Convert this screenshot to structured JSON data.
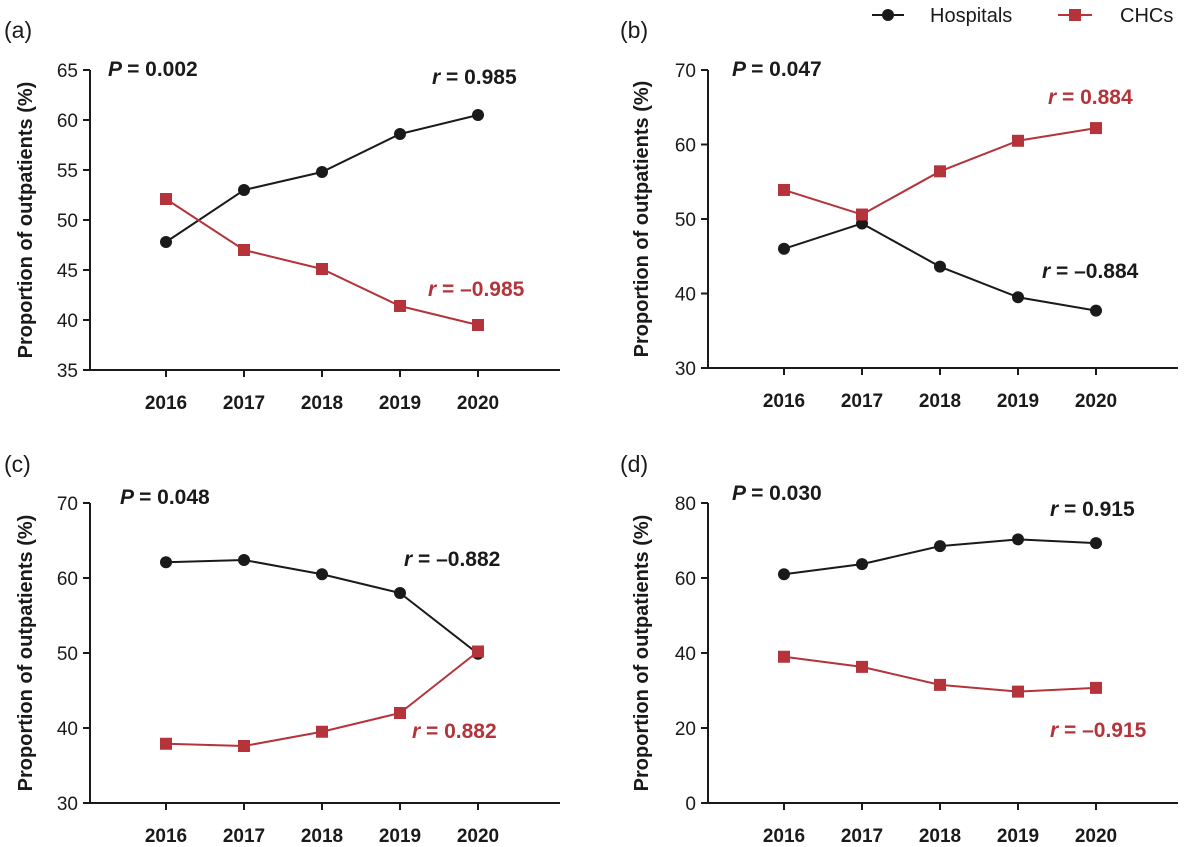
{
  "legend": {
    "items": [
      {
        "label": "Hospitals",
        "color": "#1a1a1a",
        "marker": "circle"
      },
      {
        "label": "CHCs",
        "color": "#b5333a",
        "marker": "square"
      }
    ]
  },
  "chart_data": [
    {
      "type": "line",
      "panel": "(a)",
      "ylabel": "Proportion of outpatients (%)",
      "ylim": [
        35,
        65
      ],
      "yticks": [
        35,
        40,
        45,
        50,
        55,
        60,
        65
      ],
      "categories": [
        "2016",
        "2017",
        "2018",
        "2019",
        "2020"
      ],
      "p_label": "P",
      "p_value": "= 0.002",
      "series": [
        {
          "name": "Hospitals",
          "values": [
            47.8,
            53.0,
            54.8,
            58.6,
            60.5
          ],
          "r_label": "r",
          "r_value": "= 0.985"
        },
        {
          "name": "CHCs",
          "values": [
            52.1,
            47.0,
            45.1,
            41.4,
            39.5
          ],
          "r_label": "r",
          "r_value": "= –0.985"
        }
      ]
    },
    {
      "type": "line",
      "panel": "(b)",
      "ylabel": "Proportion of outpatients (%)",
      "ylim": [
        30,
        70
      ],
      "yticks": [
        30,
        40,
        50,
        60,
        70
      ],
      "categories": [
        "2016",
        "2017",
        "2018",
        "2019",
        "2020"
      ],
      "p_label": "P",
      "p_value": "= 0.047",
      "series": [
        {
          "name": "Hospitals",
          "values": [
            46.0,
            49.4,
            43.6,
            39.5,
            37.7
          ],
          "r_label": "r",
          "r_value": "= –0.884"
        },
        {
          "name": "CHCs",
          "values": [
            53.9,
            50.6,
            56.4,
            60.5,
            62.2
          ],
          "r_label": "r",
          "r_value": "= 0.884"
        }
      ]
    },
    {
      "type": "line",
      "panel": "(c)",
      "ylabel": "Proportion of outpatients (%)",
      "ylim": [
        30,
        70
      ],
      "yticks": [
        30,
        40,
        50,
        60,
        70
      ],
      "categories": [
        "2016",
        "2017",
        "2018",
        "2019",
        "2020"
      ],
      "p_label": "P",
      "p_value": "= 0.048",
      "series": [
        {
          "name": "Hospitals",
          "values": [
            62.1,
            62.4,
            60.5,
            58.0,
            49.9
          ],
          "r_label": "r",
          "r_value": "= –0.882"
        },
        {
          "name": "CHCs",
          "values": [
            37.9,
            37.6,
            39.5,
            42.0,
            50.2
          ],
          "r_label": "r",
          "r_value": "= 0.882"
        }
      ]
    },
    {
      "type": "line",
      "panel": "(d)",
      "ylabel": "Proportion of outpatients (%)",
      "ylim": [
        0,
        80
      ],
      "yticks": [
        0,
        20,
        40,
        60,
        80
      ],
      "categories": [
        "2016",
        "2017",
        "2018",
        "2019",
        "2020"
      ],
      "p_label": "P",
      "p_value": "= 0.030",
      "series": [
        {
          "name": "Hospitals",
          "values": [
            61.0,
            63.7,
            68.5,
            70.3,
            69.3
          ],
          "r_label": "r",
          "r_value": "= 0.915"
        },
        {
          "name": "CHCs",
          "values": [
            39.0,
            36.3,
            31.5,
            29.7,
            30.7
          ],
          "r_label": "r",
          "r_value": "= –0.915"
        }
      ]
    }
  ]
}
